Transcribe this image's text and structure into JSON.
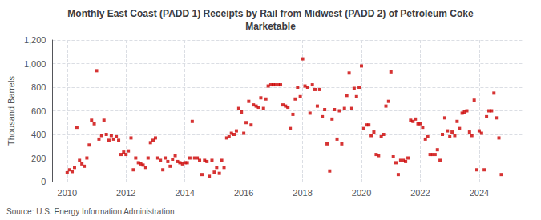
{
  "chart_data": {
    "type": "scatter",
    "title": "Monthly East Coast (PADD 1) Receipts by Rail from Midwest (PADD 2) of Petroleum Coke\nMarketable",
    "ylabel": "Thousand Barrels",
    "annotation": "Source: U.S. Energy Information Administration",
    "color": "#cc0000",
    "marker": "square",
    "grid": true,
    "xlim": [
      2009.5,
      2025.5
    ],
    "xticks": [
      2010,
      2012,
      2014,
      2016,
      2018,
      2020,
      2022,
      2024
    ],
    "ylim": [
      0,
      1200
    ],
    "yticks": [
      0,
      200,
      400,
      600,
      800,
      {
        "value": 1000,
        "label": "1,000"
      },
      {
        "value": 1200,
        "label": "1,200"
      }
    ],
    "x": [
      2010.0,
      2010.08,
      2010.17,
      2010.25,
      2010.33,
      2010.42,
      2010.5,
      2010.58,
      2010.67,
      2010.75,
      2010.83,
      2010.92,
      2011.0,
      2011.08,
      2011.17,
      2011.25,
      2011.33,
      2011.42,
      2011.5,
      2011.58,
      2011.67,
      2011.75,
      2011.83,
      2011.92,
      2012.0,
      2012.08,
      2012.17,
      2012.25,
      2012.33,
      2012.42,
      2012.5,
      2012.58,
      2012.67,
      2012.75,
      2012.83,
      2012.92,
      2013.0,
      2013.08,
      2013.17,
      2013.25,
      2013.33,
      2013.42,
      2013.5,
      2013.58,
      2013.67,
      2013.75,
      2013.83,
      2013.92,
      2014.0,
      2014.08,
      2014.17,
      2014.25,
      2014.33,
      2014.42,
      2014.5,
      2014.58,
      2014.67,
      2014.75,
      2014.83,
      2014.92,
      2015.0,
      2015.08,
      2015.17,
      2015.25,
      2015.33,
      2015.42,
      2015.5,
      2015.58,
      2015.67,
      2015.75,
      2015.83,
      2015.92,
      2016.0,
      2016.08,
      2016.17,
      2016.25,
      2016.33,
      2016.42,
      2016.5,
      2016.58,
      2016.67,
      2016.75,
      2016.83,
      2016.92,
      2017.0,
      2017.08,
      2017.17,
      2017.25,
      2017.33,
      2017.42,
      2017.5,
      2017.58,
      2017.67,
      2017.75,
      2017.83,
      2017.92,
      2018.0,
      2018.08,
      2018.17,
      2018.25,
      2018.33,
      2018.42,
      2018.5,
      2018.58,
      2018.67,
      2018.75,
      2018.83,
      2018.92,
      2019.0,
      2019.08,
      2019.17,
      2019.25,
      2019.33,
      2019.42,
      2019.5,
      2019.58,
      2019.67,
      2019.75,
      2019.83,
      2019.92,
      2020.0,
      2020.08,
      2020.17,
      2020.25,
      2020.33,
      2020.42,
      2020.5,
      2020.58,
      2020.67,
      2020.75,
      2020.83,
      2020.92,
      2021.0,
      2021.08,
      2021.17,
      2021.25,
      2021.33,
      2021.42,
      2021.5,
      2021.58,
      2021.67,
      2021.75,
      2021.83,
      2021.92,
      2022.0,
      2022.08,
      2022.17,
      2022.25,
      2022.33,
      2022.42,
      2022.5,
      2022.58,
      2022.67,
      2022.75,
      2022.83,
      2022.92,
      2023.0,
      2023.08,
      2023.17,
      2023.25,
      2023.33,
      2023.42,
      2023.5,
      2023.58,
      2023.67,
      2023.75,
      2023.83,
      2023.92,
      2024.0,
      2024.08,
      2024.17,
      2024.25,
      2024.33,
      2024.42,
      2024.5,
      2024.58,
      2024.67,
      2024.75
    ],
    "values": [
      75,
      100,
      85,
      120,
      460,
      180,
      150,
      130,
      200,
      310,
      520,
      490,
      940,
      360,
      390,
      520,
      400,
      350,
      390,
      360,
      380,
      350,
      230,
      250,
      230,
      260,
      370,
      100,
      200,
      160,
      150,
      140,
      120,
      200,
      330,
      350,
      370,
      200,
      180,
      100,
      200,
      170,
      130,
      190,
      220,
      170,
      160,
      150,
      160,
      160,
      200,
      510,
      200,
      200,
      180,
      60,
      180,
      170,
      45,
      180,
      80,
      120,
      70,
      180,
      120,
      370,
      380,
      410,
      400,
      430,
      620,
      590,
      410,
      500,
      680,
      480,
      650,
      640,
      630,
      710,
      620,
      700,
      810,
      820,
      820,
      820,
      820,
      820,
      650,
      640,
      630,
      450,
      570,
      700,
      800,
      720,
      1040,
      810,
      800,
      580,
      820,
      780,
      640,
      780,
      550,
      610,
      320,
      90,
      530,
      610,
      360,
      600,
      320,
      620,
      730,
      920,
      620,
      790,
      720,
      800,
      980,
      450,
      480,
      480,
      390,
      420,
      230,
      220,
      380,
      400,
      640,
      680,
      930,
      210,
      160,
      60,
      180,
      180,
      170,
      200,
      520,
      510,
      530,
      490,
      490,
      460,
      360,
      380,
      230,
      230,
      230,
      270,
      180,
      400,
      540,
      430,
      380,
      420,
      390,
      510,
      450,
      580,
      590,
      600,
      420,
      390,
      690,
      100,
      430,
      410,
      100,
      550,
      600,
      600,
      750,
      540,
      370,
      60
    ]
  }
}
